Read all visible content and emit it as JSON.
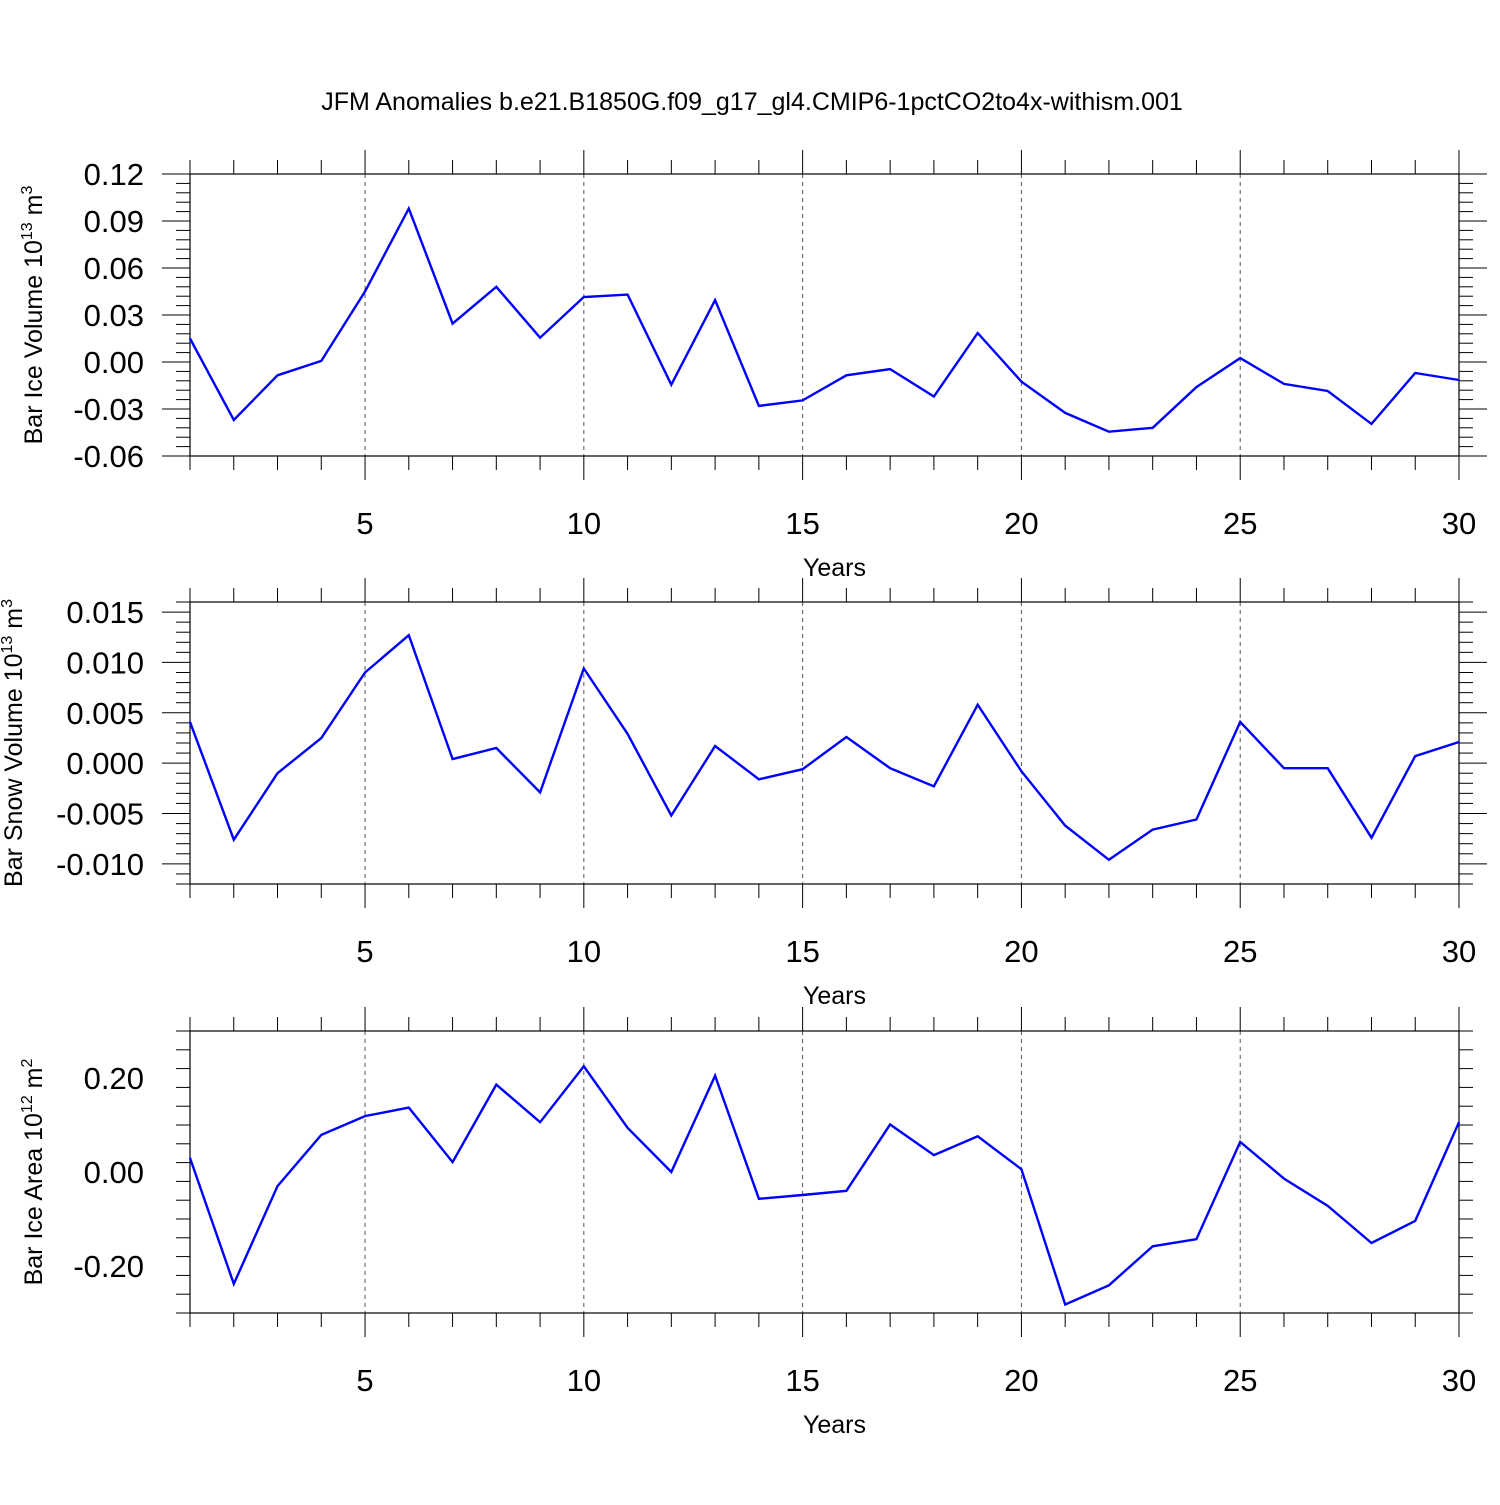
{
  "figure": {
    "title": "JFM Anomalies b.e21.B1850G.f09_g17_gl4.CMIP6-1pctCO2to4x-withism.001"
  },
  "chart_data": [
    {
      "type": "line",
      "name": "ice-volume",
      "title": "",
      "xlabel": "Years",
      "ylabel_main": "Bar Ice Volume 10",
      "ylabel_exp": "13",
      "ylabel_unit": " m",
      "ylabel_unit_exp": "3",
      "xlim": [
        1,
        30
      ],
      "ylim": [
        -0.06,
        0.12
      ],
      "xticks": [
        5,
        10,
        15,
        20,
        25,
        30
      ],
      "xtick_labels": [
        "5",
        "10",
        "15",
        "20",
        "25",
        "30"
      ],
      "yticks": [
        -0.06,
        -0.03,
        0.0,
        0.03,
        0.06,
        0.09,
        0.12
      ],
      "ytick_labels": [
        "-0.06",
        "-0.03",
        "0.00",
        "0.03",
        "0.06",
        "0.09",
        "0.12"
      ],
      "grid": "vertical dashed at major x ticks",
      "line_color": "#0000ff",
      "x": [
        1,
        2,
        3,
        4,
        5,
        6,
        7,
        8,
        9,
        10,
        11,
        12,
        13,
        14,
        15,
        16,
        17,
        18,
        19,
        20,
        21,
        22,
        23,
        24,
        25,
        26,
        27,
        28,
        29,
        30
      ],
      "values": [
        0.015,
        -0.037,
        -0.0085,
        0.0007,
        0.045,
        0.098,
        0.0245,
        0.048,
        0.0155,
        0.0415,
        0.043,
        -0.0145,
        0.0395,
        -0.028,
        -0.0245,
        -0.0085,
        -0.0045,
        -0.022,
        0.0185,
        -0.0125,
        -0.0325,
        -0.0445,
        -0.042,
        -0.016,
        0.0025,
        -0.014,
        -0.0185,
        -0.0395,
        -0.007,
        -0.0115
      ]
    },
    {
      "type": "line",
      "name": "snow-volume",
      "title": "",
      "xlabel": "Years",
      "ylabel_main": "Bar Snow Volume 10",
      "ylabel_exp": "13",
      "ylabel_unit": " m",
      "ylabel_unit_exp": "3",
      "xlim": [
        1,
        30
      ],
      "ylim": [
        -0.012,
        0.016
      ],
      "xticks": [
        5,
        10,
        15,
        20,
        25,
        30
      ],
      "xtick_labels": [
        "5",
        "10",
        "15",
        "20",
        "25",
        "30"
      ],
      "yticks": [
        -0.01,
        -0.005,
        0.0,
        0.005,
        0.01,
        0.015
      ],
      "ytick_labels": [
        "-0.010",
        "-0.005",
        "0.000",
        "0.005",
        "0.010",
        "0.015"
      ],
      "grid": "vertical dashed at major x ticks",
      "line_color": "#0000ff",
      "x": [
        1,
        2,
        3,
        4,
        5,
        6,
        7,
        8,
        9,
        10,
        11,
        12,
        13,
        14,
        15,
        16,
        17,
        18,
        19,
        20,
        21,
        22,
        23,
        24,
        25,
        26,
        27,
        28,
        29,
        30
      ],
      "values": [
        0.0041,
        -0.0076,
        -0.001,
        0.0025,
        0.009,
        0.0127,
        0.0004,
        0.0015,
        -0.0029,
        0.0094,
        0.0029,
        -0.0052,
        0.0017,
        -0.0016,
        -0.0006,
        0.0026,
        -0.0005,
        -0.0023,
        0.0058,
        -0.0008,
        -0.0062,
        -0.0096,
        -0.0066,
        -0.0056,
        0.0041,
        -0.0005,
        -0.0005,
        -0.0074,
        0.0007,
        0.0021
      ]
    },
    {
      "type": "line",
      "name": "ice-area",
      "title": "",
      "xlabel": "Years",
      "ylabel_main": "Bar Ice Area 10",
      "ylabel_exp": "12",
      "ylabel_unit": " m",
      "ylabel_unit_exp": "2",
      "xlim": [
        1,
        30
      ],
      "ylim": [
        -0.3,
        0.3
      ],
      "xticks": [
        5,
        10,
        15,
        20,
        25,
        30
      ],
      "xtick_labels": [
        "5",
        "10",
        "15",
        "20",
        "25",
        "30"
      ],
      "yticks": [
        -0.2,
        0.0,
        0.2
      ],
      "ytick_labels": [
        "-0.20",
        "0.00",
        "0.20"
      ],
      "grid": "vertical dashed at major x ticks",
      "line_color": "#0000ff",
      "x": [
        1,
        2,
        3,
        4,
        5,
        6,
        7,
        8,
        9,
        10,
        11,
        12,
        13,
        14,
        15,
        16,
        17,
        18,
        19,
        20,
        21,
        22,
        23,
        24,
        25,
        26,
        27,
        28,
        29,
        30
      ],
      "values": [
        0.03,
        -0.238,
        -0.03,
        0.079,
        0.119,
        0.137,
        0.021,
        0.186,
        0.106,
        0.225,
        0.094,
        0.0,
        0.205,
        -0.057,
        -0.049,
        -0.04,
        0.101,
        0.036,
        0.076,
        0.006,
        -0.282,
        -0.241,
        -0.158,
        -0.143,
        0.064,
        -0.014,
        -0.072,
        -0.151,
        -0.104,
        0.106
      ]
    }
  ]
}
